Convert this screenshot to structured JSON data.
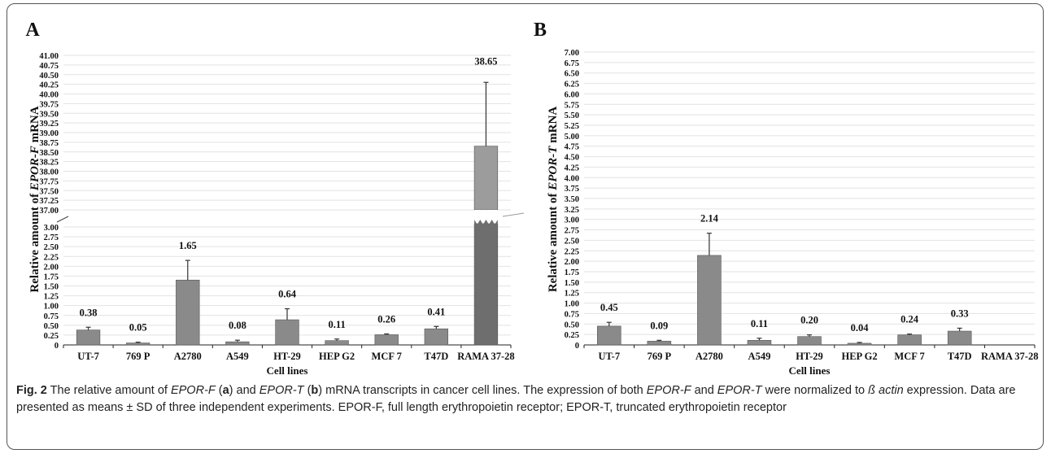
{
  "chart_data": [
    {
      "panel_label": "A",
      "type": "bar",
      "categories": [
        "UT-7",
        "769 P",
        "A2780",
        "A549",
        "HT-29",
        "HEP G2",
        "MCF 7",
        "T47D",
        "RAMA 37-28"
      ],
      "values": [
        0.38,
        0.05,
        1.65,
        0.08,
        0.64,
        0.11,
        0.26,
        0.41,
        38.65
      ],
      "value_labels": [
        "0.38",
        "0.05",
        "1.65",
        "0.08",
        "0.64",
        "0.11",
        "0.26",
        "0.41",
        "38.65"
      ],
      "errors": [
        0.07,
        0.02,
        0.5,
        0.04,
        0.28,
        0.04,
        0.02,
        0.06,
        1.65
      ],
      "ylabel_prefix": "Relative amount of ",
      "ylabel_gene": "EPOR-F",
      "ylabel_suffix": " mRNA",
      "xlabel": "Cell lines",
      "axis_break": true,
      "lower_range": [
        0,
        3.0
      ],
      "upper_range": [
        37.0,
        41.0
      ],
      "lower_ticks": [
        "0",
        "0.25",
        "0.50",
        "0.75",
        "1.00",
        "1.25",
        "1.50",
        "1.75",
        "2.00",
        "2.25",
        "2.50",
        "2.75",
        "3.00"
      ],
      "upper_ticks": [
        "37.00",
        "37.25",
        "37.50",
        "37.75",
        "38.00",
        "38.25",
        "38.50",
        "38.75",
        "39.00",
        "39.25",
        "39.50",
        "39.75",
        "40.00",
        "40.25",
        "40.50",
        "40.75",
        "41.00"
      ],
      "grid": true
    },
    {
      "panel_label": "B",
      "type": "bar",
      "categories": [
        "UT-7",
        "769 P",
        "A2780",
        "A549",
        "HT-29",
        "HEP G2",
        "MCF 7",
        "T47D",
        "RAMA 37-28"
      ],
      "values": [
        0.45,
        0.09,
        2.14,
        0.11,
        0.2,
        0.04,
        0.24,
        0.33,
        0
      ],
      "value_labels": [
        "0.45",
        "0.09",
        "2.14",
        "0.11",
        "0.20",
        "0.04",
        "0.24",
        "0.33",
        ""
      ],
      "errors": [
        0.09,
        0.02,
        0.53,
        0.05,
        0.04,
        0.02,
        0.02,
        0.07,
        0
      ],
      "ylabel_prefix": "Relative amount of ",
      "ylabel_gene": "EPOR-T",
      "ylabel_suffix": " mRNA",
      "xlabel": "Cell lines",
      "axis_break": false,
      "ylim": [
        0,
        7.0
      ],
      "ticks": [
        "0",
        "0.25",
        "0.50",
        "0.75",
        "1.00",
        "1.25",
        "1.50",
        "1.75",
        "2.00",
        "2.25",
        "2.50",
        "2.75",
        "3.00",
        "3.25",
        "3.50",
        "3.75",
        "4.00",
        "4.25",
        "4.50",
        "4.75",
        "5.00",
        "5.25",
        "5.50",
        "5.75",
        "6.00",
        "6.25",
        "6.50",
        "6.75",
        "7.00"
      ],
      "grid": true
    }
  ],
  "colors": {
    "bar": "#8a8a8a",
    "bar_dark": "#6e6e6e",
    "bar_upper": "#9c9c9c",
    "grid": "#e2e2e2",
    "axis": "#222222",
    "text": "#111111"
  },
  "caption": {
    "fig": "Fig. 2",
    "t1": " The relative amount of ",
    "g1": "EPOR-F",
    "t2": " (",
    "a": "a",
    "t3": ") and ",
    "g2": "EPOR-T",
    "t4": " (",
    "b": "b",
    "t5": ") mRNA transcripts in cancer cell lines. The expression of both ",
    "g3": "EPOR-F",
    "t6": " and ",
    "g4": "EPOR-T",
    "t7": " were normalized to ",
    "g5": "ß actin",
    "t8": " expression. Data are presented as means ± SD of three independent experiments. EPOR-F, full length erythropoietin receptor; EPOR-T, truncated erythropoietin receptor"
  }
}
